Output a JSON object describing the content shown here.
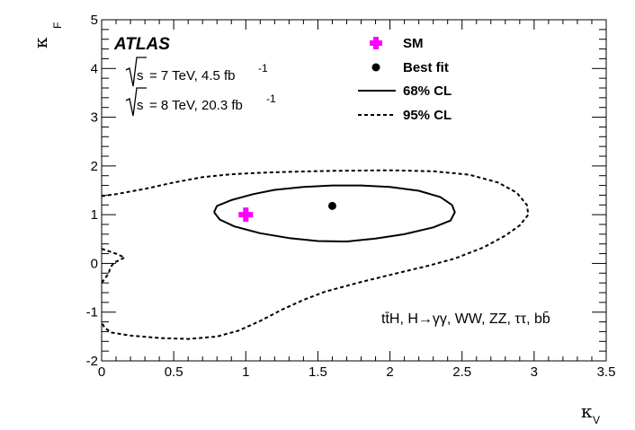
{
  "chart_data": {
    "type": "contour",
    "experiment_label": "ATLAS",
    "energy_lines": [
      {
        "sqrt_s": "s",
        "text": "= 7 TeV,  4.5 fb",
        "sup": "-1"
      },
      {
        "sqrt_s": "s",
        "text": "= 8 TeV,  20.3 fb",
        "sup": "-1"
      }
    ],
    "xlabel": "κ",
    "xlabel_sub": "V",
    "ylabel": "κ",
    "ylabel_sub": "F",
    "xlim": [
      0,
      3.5
    ],
    "ylim": [
      -2,
      5
    ],
    "x_ticks": [
      0,
      0.5,
      1,
      1.5,
      2,
      2.5,
      3,
      3.5
    ],
    "x_tick_labels": [
      "0",
      "0.5",
      "1",
      "1.5",
      "2",
      "2.5",
      "3",
      "3.5"
    ],
    "y_ticks": [
      -2,
      -1,
      0,
      1,
      2,
      3,
      4,
      5
    ],
    "y_tick_labels": [
      "-2",
      "-1",
      "0",
      "1",
      "2",
      "3",
      "4",
      "5"
    ],
    "legend": [
      {
        "label": "SM",
        "marker": "plus",
        "color": "#ff00ff"
      },
      {
        "label": "Best fit",
        "marker": "dot",
        "color": "#000000"
      },
      {
        "label": "68% CL",
        "line": "solid"
      },
      {
        "label": "95% CL",
        "line": "dashed"
      }
    ],
    "annotation": "tt̄H, H→γγ, WW, ZZ, ττ, bb̄",
    "sm_point": {
      "x": 1.0,
      "y": 1.0
    },
    "best_fit": {
      "x": 1.6,
      "y": 1.18
    },
    "contours": [
      {
        "name": "68% CL",
        "style": "solid",
        "points": [
          [
            0.78,
            1.05
          ],
          [
            0.8,
            1.18
          ],
          [
            0.9,
            1.3
          ],
          [
            1.05,
            1.42
          ],
          [
            1.2,
            1.51
          ],
          [
            1.4,
            1.57
          ],
          [
            1.6,
            1.6
          ],
          [
            1.8,
            1.6
          ],
          [
            2.0,
            1.57
          ],
          [
            2.2,
            1.49
          ],
          [
            2.35,
            1.36
          ],
          [
            2.43,
            1.2
          ],
          [
            2.45,
            1.05
          ],
          [
            2.42,
            0.88
          ],
          [
            2.3,
            0.74
          ],
          [
            2.1,
            0.6
          ],
          [
            1.9,
            0.51
          ],
          [
            1.7,
            0.45
          ],
          [
            1.5,
            0.46
          ],
          [
            1.3,
            0.52
          ],
          [
            1.1,
            0.62
          ],
          [
            0.92,
            0.76
          ],
          [
            0.82,
            0.9
          ],
          [
            0.78,
            1.05
          ]
        ]
      },
      {
        "name": "95% CL",
        "style": "dashed",
        "points": [
          [
            0.0,
            1.38
          ],
          [
            0.1,
            1.42
          ],
          [
            0.3,
            1.53
          ],
          [
            0.5,
            1.66
          ],
          [
            0.7,
            1.77
          ],
          [
            0.9,
            1.83
          ],
          [
            1.1,
            1.86
          ],
          [
            1.3,
            1.88
          ],
          [
            1.6,
            1.9
          ],
          [
            2.0,
            1.91
          ],
          [
            2.3,
            1.89
          ],
          [
            2.55,
            1.82
          ],
          [
            2.75,
            1.66
          ],
          [
            2.88,
            1.45
          ],
          [
            2.95,
            1.2
          ],
          [
            2.96,
            1.0
          ],
          [
            2.9,
            0.78
          ],
          [
            2.8,
            0.57
          ],
          [
            2.65,
            0.33
          ],
          [
            2.45,
            0.1
          ],
          [
            2.25,
            -0.06
          ],
          [
            2.05,
            -0.2
          ],
          [
            1.8,
            -0.38
          ],
          [
            1.55,
            -0.58
          ],
          [
            1.4,
            -0.75
          ],
          [
            1.25,
            -0.95
          ],
          [
            1.1,
            -1.18
          ],
          [
            0.95,
            -1.38
          ],
          [
            0.8,
            -1.5
          ],
          [
            0.6,
            -1.55
          ],
          [
            0.4,
            -1.53
          ],
          [
            0.2,
            -1.48
          ],
          [
            0.07,
            -1.42
          ],
          [
            0.02,
            -1.32
          ],
          [
            0.0,
            -1.2
          ]
        ]
      },
      {
        "name": "95% CL (small region)",
        "style": "dashed",
        "points": [
          [
            0.0,
            0.3
          ],
          [
            0.1,
            0.2
          ],
          [
            0.16,
            0.12
          ],
          [
            0.09,
            0.02
          ],
          [
            0.06,
            -0.08
          ],
          [
            0.05,
            -0.2
          ],
          [
            0.0,
            -0.4
          ]
        ]
      }
    ]
  }
}
